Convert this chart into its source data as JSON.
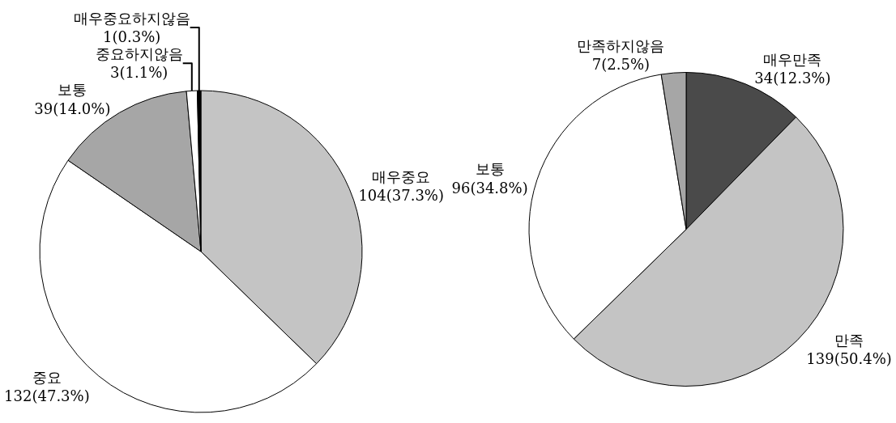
{
  "chart_data": [
    {
      "type": "pie",
      "categories": [
        "매우중요",
        "중요",
        "보통",
        "중요하지않음",
        "매우중요하지않음"
      ],
      "values": [
        104,
        132,
        39,
        3,
        1
      ],
      "value_labels": [
        "104(37.3%)",
        "132(47.3%)",
        "39(14.0%)",
        "3(1.1%)",
        "1(0.3%)"
      ],
      "colors": [
        "#c4c4c4",
        "#ffffff",
        "#a6a6a6",
        "#ffffff",
        "#000000"
      ],
      "legend": false
    },
    {
      "type": "pie",
      "categories": [
        "매우만족",
        "만족",
        "보통",
        "만족하지않음"
      ],
      "values": [
        34,
        139,
        96,
        7
      ],
      "value_labels": [
        "34(12.3%)",
        "139(50.4%)",
        "96(34.8%)",
        "7(2.5%)"
      ],
      "colors": [
        "#4a4a4a",
        "#c4c4c4",
        "#ffffff",
        "#a6a6a6"
      ],
      "legend": false
    }
  ]
}
